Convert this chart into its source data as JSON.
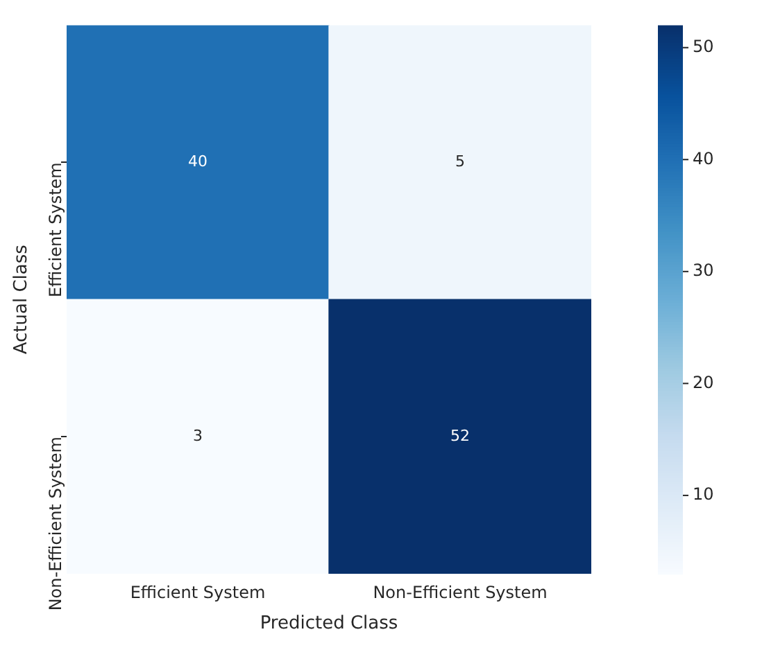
{
  "chart_data": {
    "type": "heatmap",
    "xlabel": "Predicted Class",
    "ylabel": "Actual Class",
    "categories": [
      "Efficient System",
      "Non-Efficient System"
    ],
    "y_categories": [
      "Efficient System",
      "Non-Efficient System"
    ],
    "cells": [
      [
        40,
        5
      ],
      [
        3,
        52
      ]
    ],
    "data_labels": true,
    "clim": [
      3,
      52
    ],
    "cticks": [
      10,
      20,
      30,
      40,
      50
    ]
  }
}
